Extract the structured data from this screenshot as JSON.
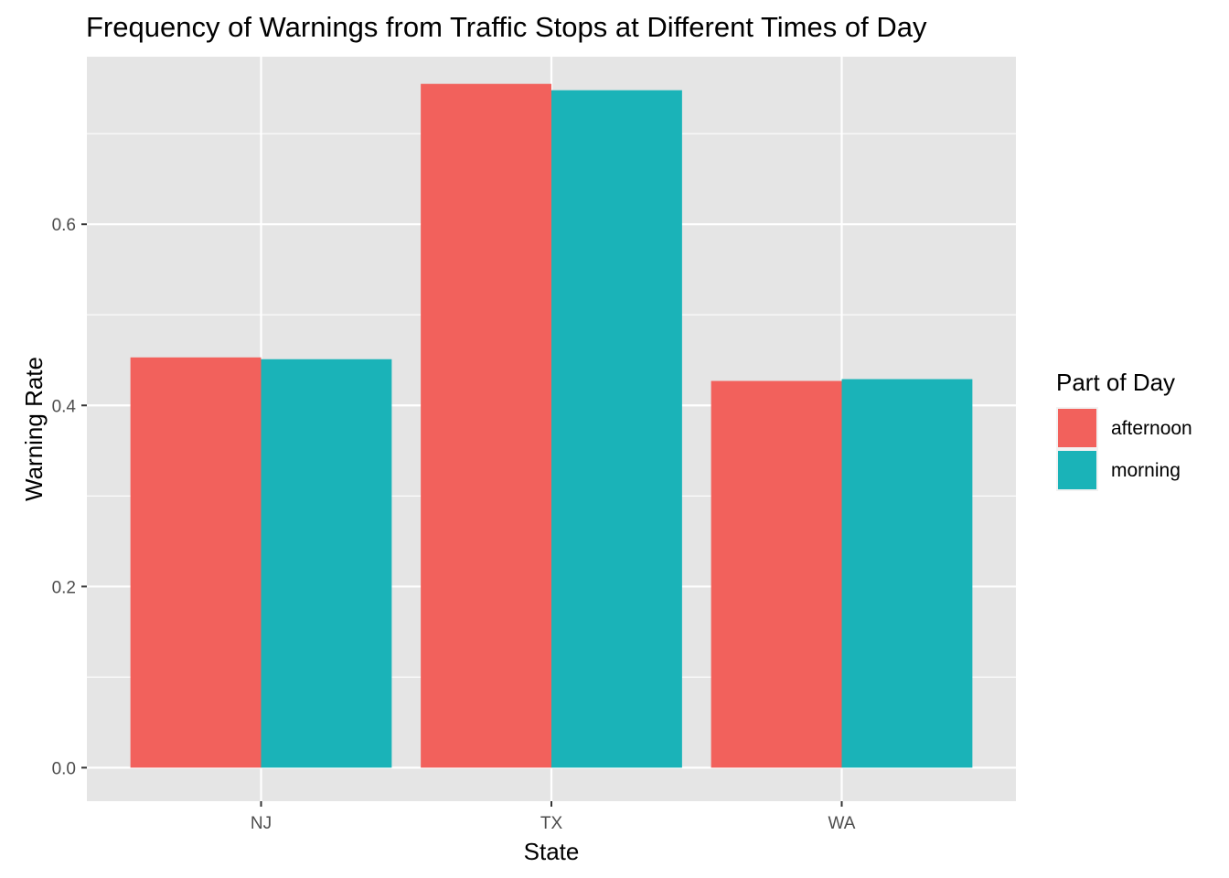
{
  "chart_data": {
    "type": "bar",
    "title": "Frequency of Warnings from Traffic Stops at Different Times of Day",
    "xlabel": "State",
    "ylabel": "Warning Rate",
    "categories": [
      "NJ",
      "TX",
      "WA"
    ],
    "series": [
      {
        "name": "afternoon",
        "color": "#F8766D",
        "display_color": "#f2615c",
        "values": [
          0.453,
          0.755,
          0.427
        ]
      },
      {
        "name": "morning",
        "color": "#00BFC4",
        "display_color": "#1ab3b8",
        "values": [
          0.451,
          0.748,
          0.429
        ]
      }
    ],
    "ylim": [
      -0.037,
      0.785
    ],
    "yticks": [
      0.0,
      0.2,
      0.4,
      0.6
    ],
    "ytick_labels": [
      "0.0",
      "0.2",
      "0.4",
      "0.6"
    ],
    "grid": true,
    "legend": {
      "title": "Part of Day",
      "placement": "right"
    }
  }
}
